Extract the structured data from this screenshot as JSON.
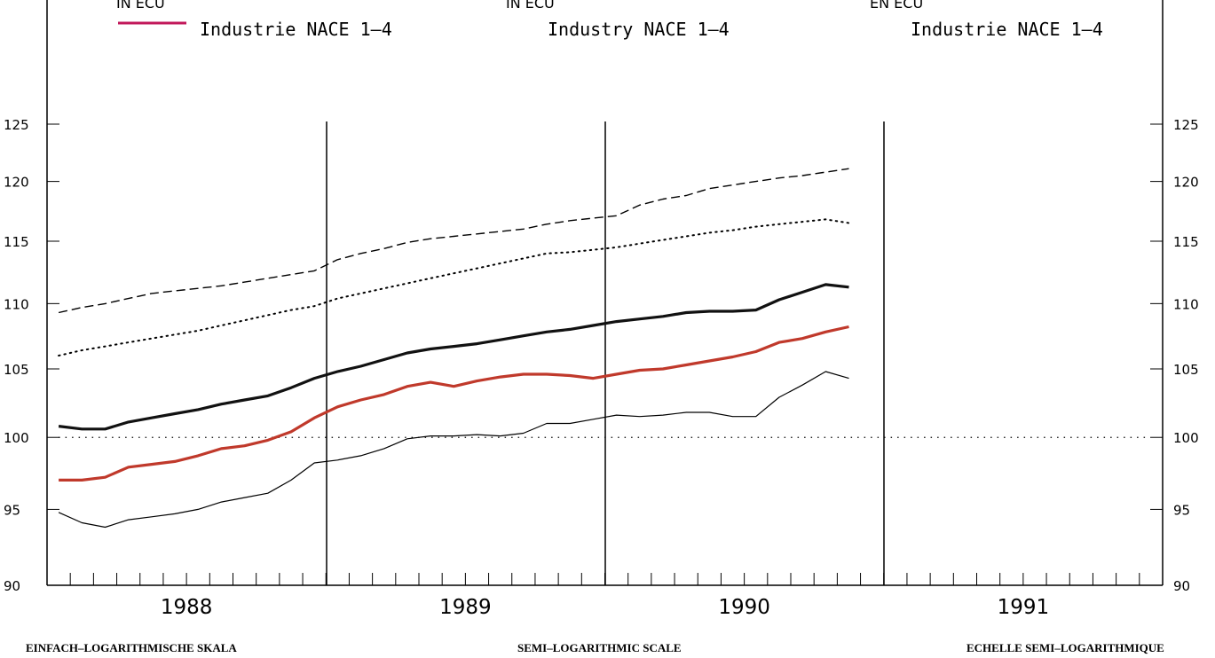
{
  "header": {
    "cut_labels": [
      "IN ECU",
      "IN ECU",
      "EN ECU"
    ],
    "legend_labels": [
      "Industrie NACE 1–4",
      "Industry NACE 1–4",
      "Industrie NACE 1–4"
    ]
  },
  "footer": {
    "scale_labels": [
      "EINFACH–LOGARITHMISCHE SKALA",
      "SEMI–LOGARITHMIC SCALE",
      "ECHELLE SEMI–LOGARITHMIQUE"
    ]
  },
  "colors": {
    "accent_red": "#c0392b",
    "legend_swatch": "#c2185b",
    "ink": "#000000"
  },
  "chart_data": {
    "type": "line",
    "scale": "semi-logarithmic",
    "y_ticks": [
      90,
      95,
      100,
      105,
      110,
      115,
      120,
      125
    ],
    "y_tick_labels": [
      "90",
      "95",
      "100",
      "105",
      "110",
      "115",
      "120",
      "125"
    ],
    "ylim": [
      90,
      125
    ],
    "years": [
      "1988",
      "1989",
      "1990",
      "1991"
    ],
    "x_unit": "month index from 1988-01 (0 = Jan 1988)",
    "xlim": [
      0,
      48
    ],
    "reference_line": 100,
    "grid": false,
    "series": [
      {
        "style": "dashed",
        "x": [
          0,
          1,
          2,
          3,
          4,
          5,
          6,
          7,
          8,
          9,
          10,
          11,
          12,
          13,
          14,
          15,
          16,
          17,
          18,
          19,
          20,
          21,
          22,
          23,
          24,
          25,
          26,
          27,
          28,
          29,
          30,
          31,
          32,
          33,
          34
        ],
        "values": [
          109.3,
          109.7,
          110.0,
          110.4,
          110.8,
          111.0,
          111.2,
          111.4,
          111.7,
          112.0,
          112.3,
          112.6,
          113.5,
          114.0,
          114.4,
          114.9,
          115.2,
          115.4,
          115.6,
          115.8,
          116.0,
          116.4,
          116.7,
          116.9,
          117.1,
          118.0,
          118.5,
          118.8,
          119.4,
          119.7,
          120.0,
          120.3,
          120.5,
          120.8,
          121.1
        ]
      },
      {
        "style": "dotted",
        "x": [
          0,
          1,
          2,
          3,
          4,
          5,
          6,
          7,
          8,
          9,
          10,
          11,
          12,
          13,
          14,
          15,
          16,
          17,
          18,
          19,
          20,
          21,
          22,
          23,
          24,
          25,
          26,
          27,
          28,
          29,
          30,
          31,
          32,
          33,
          34
        ],
        "values": [
          106.0,
          106.4,
          106.7,
          107.0,
          107.3,
          107.6,
          107.9,
          108.3,
          108.7,
          109.1,
          109.5,
          109.8,
          110.4,
          110.8,
          111.2,
          111.6,
          112.0,
          112.4,
          112.8,
          113.2,
          113.6,
          114.0,
          114.1,
          114.3,
          114.5,
          114.8,
          115.1,
          115.4,
          115.7,
          115.9,
          116.2,
          116.4,
          116.6,
          116.8,
          116.5
        ]
      },
      {
        "style": "thick",
        "x": [
          0,
          1,
          2,
          3,
          4,
          5,
          6,
          7,
          8,
          9,
          10,
          11,
          12,
          13,
          14,
          15,
          16,
          17,
          18,
          19,
          20,
          21,
          22,
          23,
          24,
          25,
          26,
          27,
          28,
          29,
          30,
          31,
          32,
          33,
          34
        ],
        "values": [
          100.8,
          100.6,
          100.6,
          101.1,
          101.4,
          101.7,
          102.0,
          102.4,
          102.7,
          103.0,
          103.6,
          104.3,
          104.8,
          105.2,
          105.7,
          106.2,
          106.5,
          106.7,
          106.9,
          107.2,
          107.5,
          107.8,
          108.0,
          108.3,
          108.6,
          108.8,
          109.0,
          109.3,
          109.4,
          109.4,
          109.5,
          110.3,
          110.9,
          111.5,
          111.3
        ]
      },
      {
        "style": "red",
        "x": [
          0,
          1,
          2,
          3,
          4,
          5,
          6,
          7,
          8,
          9,
          10,
          11,
          12,
          13,
          14,
          15,
          16,
          17,
          18,
          19,
          20,
          21,
          22,
          23,
          24,
          25,
          26,
          27,
          28,
          29,
          30,
          31,
          32,
          33,
          34
        ],
        "values": [
          97.0,
          97.0,
          97.2,
          97.9,
          98.1,
          98.3,
          98.7,
          99.2,
          99.4,
          99.8,
          100.4,
          101.4,
          102.2,
          102.7,
          103.1,
          103.7,
          104.0,
          103.7,
          104.1,
          104.4,
          104.6,
          104.6,
          104.5,
          104.3,
          104.6,
          104.9,
          105.0,
          105.3,
          105.6,
          105.9,
          106.3,
          107.0,
          107.3,
          107.8,
          108.2
        ]
      },
      {
        "style": "thin",
        "x": [
          0,
          1,
          2,
          3,
          4,
          5,
          6,
          7,
          8,
          9,
          10,
          11,
          12,
          13,
          14,
          15,
          16,
          17,
          18,
          19,
          20,
          21,
          22,
          23,
          24,
          25,
          26,
          27,
          28,
          29,
          30,
          31,
          32,
          33,
          34
        ],
        "values": [
          94.8,
          94.1,
          93.8,
          94.3,
          94.5,
          94.7,
          95.0,
          95.5,
          95.8,
          96.1,
          97.0,
          98.2,
          98.4,
          98.7,
          99.2,
          99.9,
          100.1,
          100.1,
          100.2,
          100.1,
          100.3,
          101.0,
          101.0,
          101.3,
          101.6,
          101.5,
          101.6,
          101.8,
          101.8,
          101.5,
          101.5,
          102.9,
          103.8,
          104.8,
          104.3
        ]
      }
    ]
  }
}
